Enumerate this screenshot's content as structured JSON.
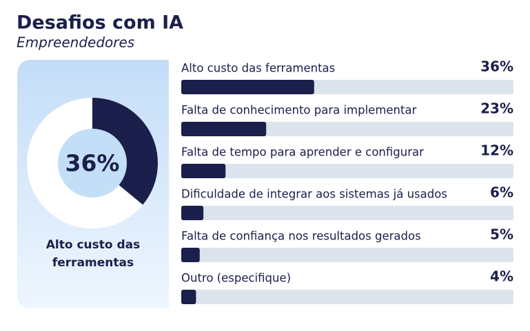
{
  "header": {
    "title": "Desafios com IA",
    "subtitle": "Empreendedores"
  },
  "chart_data": [
    {
      "type": "donut",
      "categories": [
        "Alto custo das ferramentas"
      ],
      "values": [
        36
      ],
      "value_labels": [
        "36%"
      ],
      "color": "#1b1f4b"
    },
    {
      "type": "bar",
      "categories": [
        "Alto custo das ferramentas",
        "Falta de conhecimento para implementar",
        "Falta de tempo para aprender e configurar",
        "Dificuldade de integrar aos sistemas já usados",
        "Falta de confiança nos resultados gerados",
        "Outro (especifique)"
      ],
      "values": [
        36,
        23,
        12,
        6,
        5,
        4
      ],
      "value_labels": [
        "36%",
        "23%",
        "12%",
        "6%",
        "5%",
        "4%"
      ],
      "color": "#1b1f4b",
      "xlim": [
        0,
        90
      ]
    }
  ]
}
